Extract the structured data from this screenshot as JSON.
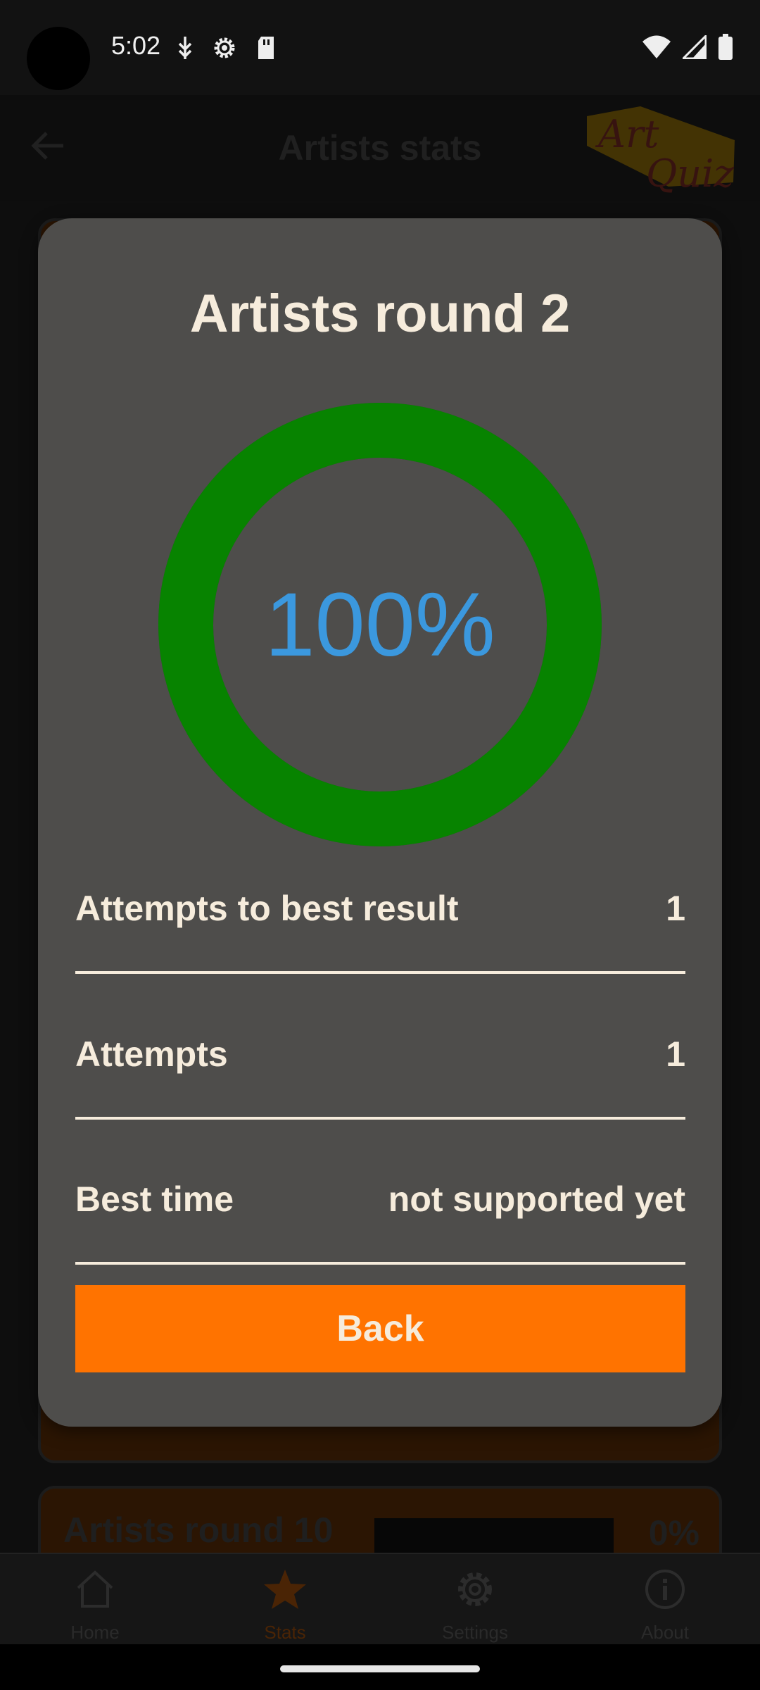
{
  "status_bar": {
    "time": "5:02"
  },
  "app_bar": {
    "title": "Artists stats",
    "logo_text_top": "Art",
    "logo_text_bottom": "Quiz"
  },
  "background_list": {
    "card_2": {
      "title": "Artists round 10",
      "percent": "0%"
    }
  },
  "dialog": {
    "title": "Artists round 2",
    "progress_percent": 100,
    "progress_label": "100%",
    "stats": [
      {
        "label": "Attempts to best result",
        "value": "1"
      },
      {
        "label": "Attempts",
        "value": "1"
      },
      {
        "label": "Best time",
        "value": "not supported yet"
      }
    ],
    "back_label": "Back"
  },
  "bottom_nav": {
    "items": [
      {
        "label": "Home",
        "icon": "home-icon"
      },
      {
        "label": "Stats",
        "icon": "star-icon"
      },
      {
        "label": "Settings",
        "icon": "gear-icon"
      },
      {
        "label": "About",
        "icon": "info-icon"
      }
    ]
  },
  "colors": {
    "accent": "#ff7300",
    "ring": "#078300",
    "percent_text": "#3b98de",
    "dialog_bg": "#4e4d4b",
    "text_light": "#f6ecdc"
  }
}
